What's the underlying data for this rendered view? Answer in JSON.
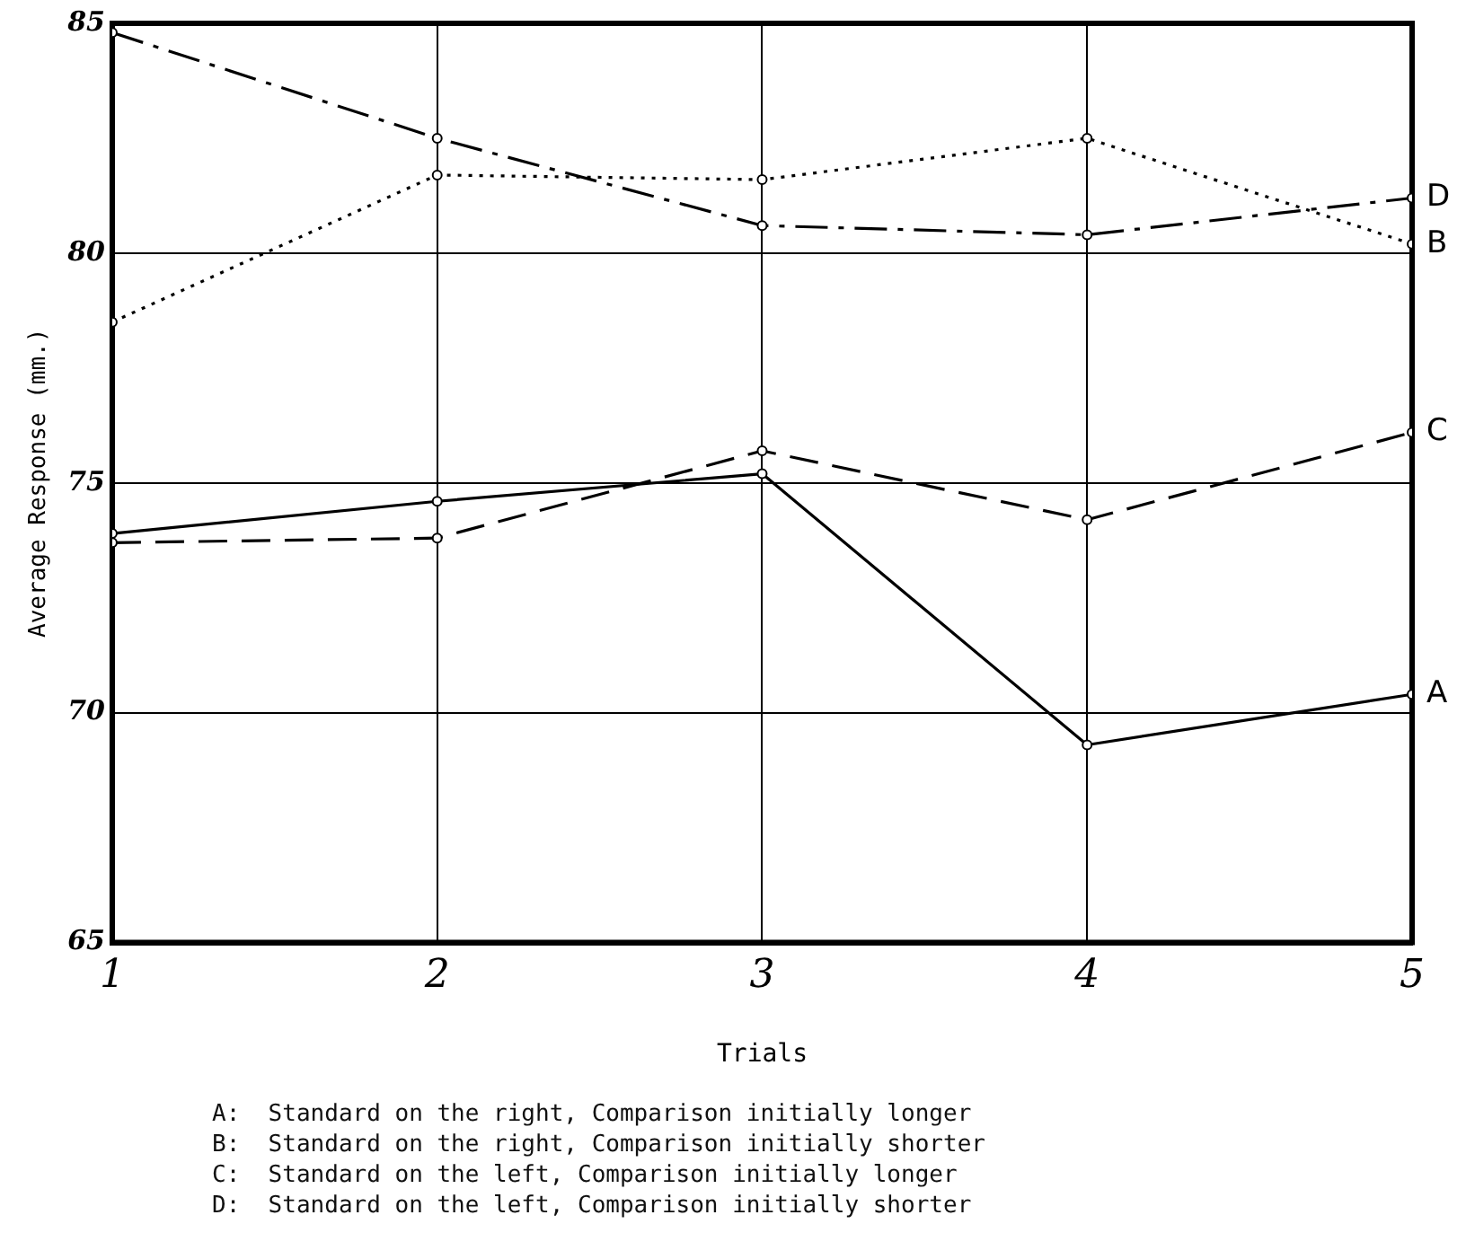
{
  "chart_data": {
    "type": "line",
    "xlabel": "Trials",
    "ylabel": "Average Response (mm.)",
    "x": [
      1,
      2,
      3,
      4,
      5
    ],
    "xlim": [
      1,
      5
    ],
    "xticks": [
      1,
      2,
      3,
      4,
      5
    ],
    "ylim": [
      65,
      85
    ],
    "yticks": [
      65,
      70,
      75,
      80,
      85
    ],
    "grid": true,
    "legend": false,
    "marker": "circle",
    "series": [
      {
        "name": "A",
        "color": "#000000",
        "line_style": "solid",
        "values": [
          73.9,
          74.6,
          75.2,
          69.3,
          70.4
        ]
      },
      {
        "name": "B",
        "color": "#000000",
        "line_style": "dotted",
        "values": [
          78.5,
          81.7,
          81.6,
          82.5,
          80.2
        ]
      },
      {
        "name": "C",
        "color": "#000000",
        "line_style": "dashed",
        "values": [
          73.7,
          73.8,
          75.7,
          74.2,
          76.1
        ]
      },
      {
        "name": "D",
        "color": "#000000",
        "line_style": "dashdot",
        "values": [
          84.8,
          82.5,
          80.6,
          80.4,
          81.2
        ]
      }
    ],
    "annotations": [
      "A:  Standard on the right, Comparison initially longer",
      "B:  Standard on the right, Comparison initially shorter",
      "C:  Standard on the left, Comparison initially longer",
      "D:  Standard on the left, Comparison initially shorter"
    ]
  }
}
